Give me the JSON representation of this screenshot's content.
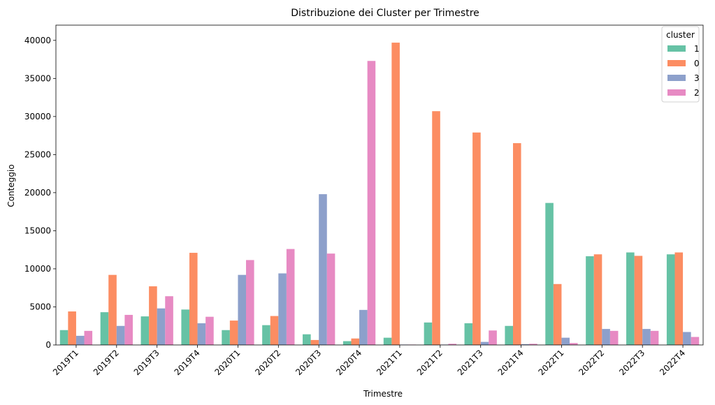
{
  "chart_data": {
    "type": "bar",
    "title": "Distribuzione dei Cluster per Trimestre",
    "xlabel": "Trimestre",
    "ylabel": "Conteggio",
    "ylim": [
      0,
      42000
    ],
    "yticks": [
      0,
      5000,
      10000,
      15000,
      20000,
      25000,
      30000,
      35000,
      40000
    ],
    "grid": false,
    "legend": {
      "title": "cluster",
      "placement": "top-right"
    },
    "categories": [
      "2019T1",
      "2019T2",
      "2019T3",
      "2019T4",
      "2020T1",
      "2020T2",
      "2020T3",
      "2020T4",
      "2021T1",
      "2021T2",
      "2021T3",
      "2021T4",
      "2022T1",
      "2022T2",
      "2022T3",
      "2022T4"
    ],
    "series": [
      {
        "name": "1",
        "color": "#66c2a5",
        "values": [
          1950,
          4300,
          3750,
          4650,
          1950,
          2600,
          1400,
          500,
          950,
          2950,
          2850,
          2500,
          18650,
          11650,
          12150,
          11900
        ]
      },
      {
        "name": "0",
        "color": "#fc8d62",
        "values": [
          4400,
          9200,
          7700,
          12100,
          3200,
          3800,
          650,
          850,
          39700,
          30700,
          27900,
          26500,
          8000,
          11900,
          11700,
          12150
        ]
      },
      {
        "name": "3",
        "color": "#8da0cb",
        "values": [
          1200,
          2500,
          4800,
          2850,
          9200,
          9400,
          19800,
          4600,
          50,
          50,
          400,
          100,
          950,
          2100,
          2100,
          1700
        ]
      },
      {
        "name": "2",
        "color": "#e78ac3",
        "values": [
          1850,
          3950,
          6400,
          3700,
          11150,
          12600,
          12000,
          37300,
          50,
          150,
          1900,
          150,
          250,
          1850,
          1850,
          1050
        ]
      }
    ]
  }
}
